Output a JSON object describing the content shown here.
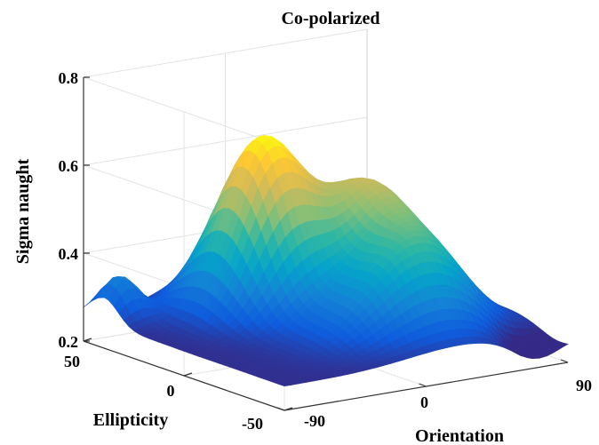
{
  "chart_data": {
    "type": "surface",
    "title": "Co-polarized",
    "xlabel": "Orientation",
    "ylabel": "Ellipticity",
    "zlabel": "Sigma naught",
    "xlim": [
      -90,
      90
    ],
    "ylim": [
      -50,
      50
    ],
    "zlim": [
      0.2,
      0.8
    ],
    "xticks": [
      "-90",
      "0",
      "90"
    ],
    "yticks": [
      "-50",
      "0",
      "50"
    ],
    "zticks": [
      "0.2",
      "0.4",
      "0.6",
      "0.8"
    ],
    "colormap": "parula",
    "grid": true,
    "approx_z_values": {
      "peak": 0.66,
      "shoulder": 0.6,
      "minimum": 0.26,
      "left_edge_at_ellipticity_50": 0.26
    }
  }
}
